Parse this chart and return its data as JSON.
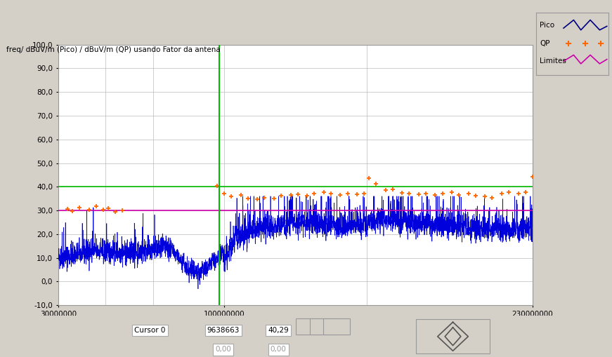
{
  "title": "freq/ dBuV/m (Pico) / dBuV/m (QP) usando Fator da antena",
  "xmin": 30000000,
  "xmax": 230000000,
  "ymin": -10,
  "ymax": 100,
  "yticks": [
    -10,
    0,
    10,
    20,
    30,
    40,
    50,
    60,
    70,
    80,
    90,
    100
  ],
  "xticks": [
    30000000,
    100000000,
    230000000
  ],
  "xtick_labels": [
    "30000000",
    "100000000",
    "230000000"
  ],
  "extra_vgrid": [
    50000000,
    70000000,
    160000000
  ],
  "cursor_vline_x": 98000000,
  "limit_line_green": 40.0,
  "limit_line_magenta": 30.0,
  "bg_color": "#d4d0c8",
  "plot_bg_color": "#ffffff",
  "blue_color": "#0000dd",
  "orange_color": "#ff6600",
  "green_color": "#00bb00",
  "magenta_color": "#cc00aa",
  "dark_blue_color": "#000080",
  "legend_labels": [
    "Pico",
    "QP",
    "Limites"
  ],
  "seed": 42
}
